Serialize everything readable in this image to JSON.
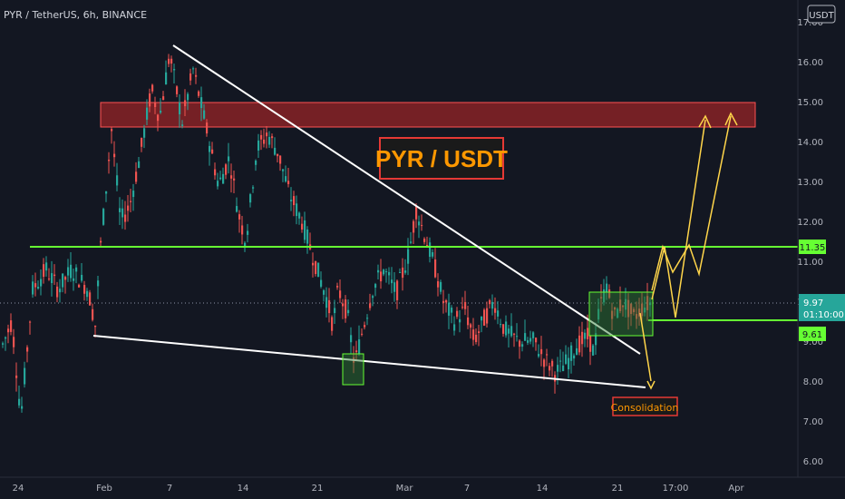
{
  "header": {
    "symbol_line": "PYR / TetherUS, 6h, BINANCE",
    "currency_button": "USDT"
  },
  "chart_data": {
    "type": "candlestick",
    "title": "PYR / USDT",
    "y_axis": {
      "ticks": [
        "6.00",
        "7.00",
        "8.00",
        "9.00",
        "10.00",
        "11.00",
        "12.00",
        "13.00",
        "14.00",
        "15.00",
        "16.00",
        "17.00"
      ],
      "ylim": [
        5.7,
        17.5
      ]
    },
    "x_axis": {
      "ticks": [
        "24",
        "Feb",
        "7",
        "14",
        "21",
        "Mar",
        "7",
        "14",
        "21",
        "17:00",
        "Apr"
      ]
    },
    "price_labels": {
      "resistance": "11.35",
      "current_price": "9.97",
      "countdown": "01:10:00",
      "support": "9.61"
    },
    "levels": {
      "resistance": 11.35,
      "support": 9.61,
      "current": 9.97,
      "supply_zone": [
        14.4,
        15.0
      ]
    },
    "annotation": "Consolidation",
    "colors": {
      "background": "#131722",
      "up": "#26a69a",
      "down": "#ef5350",
      "level_line": "#66ff33",
      "trendline": "#ffffff",
      "projection": "#ffd54a",
      "zone": "#c62828",
      "title_box": "#d32f2f",
      "title_text": "#ff9800"
    }
  }
}
